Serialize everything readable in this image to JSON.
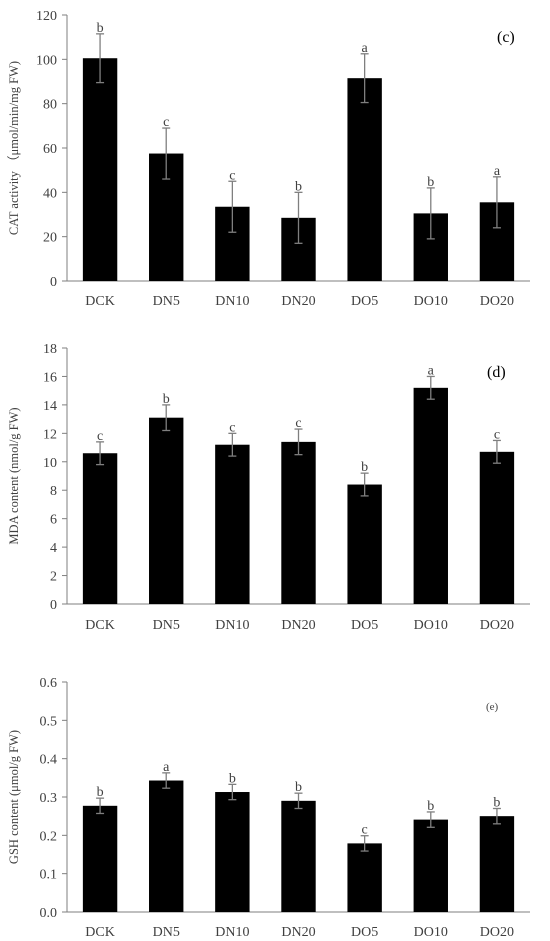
{
  "chart_data": [
    {
      "type": "bar",
      "panel_label": "(c)",
      "ylabel": "CAT activity （μmol/min/mg FW)",
      "ylim": [
        0,
        120
      ],
      "yticks": [
        "0",
        "20",
        "40",
        "60",
        "80",
        "100",
        "120"
      ],
      "categories": [
        "DCK",
        "DN5",
        "DN10",
        "DN20",
        "DO5",
        "DO10",
        "DO20"
      ],
      "values": [
        100.5,
        57.5,
        33.5,
        28.5,
        91.5,
        30.5,
        35.5
      ],
      "errors": [
        11,
        11.5,
        11.5,
        11.5,
        11,
        11.5,
        11.5
      ],
      "letters": [
        "b",
        "c",
        "c",
        "b",
        "a",
        "b",
        "a"
      ],
      "colors": {
        "bar": "#000000",
        "axis": "#7f7f7f",
        "error": "#7f7f7f"
      }
    },
    {
      "type": "bar",
      "panel_label": "(d)",
      "ylabel": "MDA content (nmol/g FW)",
      "ylim": [
        0,
        18
      ],
      "yticks": [
        "0",
        "2",
        "4",
        "6",
        "8",
        "10",
        "12",
        "14",
        "16",
        "18"
      ],
      "categories": [
        "DCK",
        "DN5",
        "DN10",
        "DN20",
        "DO5",
        "DO10",
        "DO20"
      ],
      "values": [
        10.6,
        13.1,
        11.2,
        11.4,
        8.4,
        15.2,
        10.7
      ],
      "errors": [
        0.8,
        0.9,
        0.8,
        0.9,
        0.8,
        0.8,
        0.8
      ],
      "letters": [
        "c",
        "b",
        "c",
        "c",
        "b",
        "a",
        "c"
      ],
      "colors": {
        "bar": "#000000",
        "axis": "#7f7f7f",
        "error": "#7f7f7f"
      }
    },
    {
      "type": "bar",
      "panel_label": "(e)",
      "ylabel": "GSH content (μmol/g FW)",
      "ylim": [
        0,
        0.6
      ],
      "yticks": [
        "0.0",
        "0.1",
        "0.2",
        "0.3",
        "0.4",
        "0.5",
        "0.6"
      ],
      "categories": [
        "DCK",
        "DN5",
        "DN10",
        "DN20",
        "DO5",
        "DO10",
        "DO20"
      ],
      "values": [
        0.277,
        0.343,
        0.313,
        0.29,
        0.179,
        0.241,
        0.25
      ],
      "errors": [
        0.02,
        0.02,
        0.02,
        0.02,
        0.02,
        0.02,
        0.02
      ],
      "letters": [
        "b",
        "a",
        "b",
        "b",
        "c",
        "b",
        "b"
      ],
      "colors": {
        "bar": "#000000",
        "axis": "#7f7f7f",
        "error": "#7f7f7f"
      }
    }
  ]
}
